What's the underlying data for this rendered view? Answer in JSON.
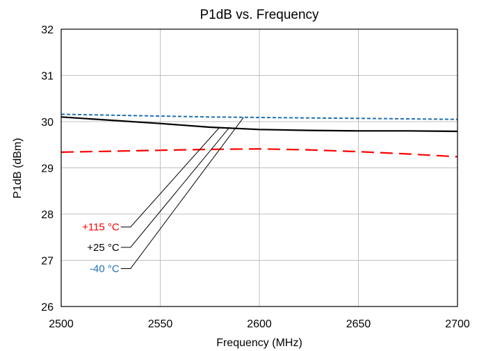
{
  "chart_data": {
    "type": "line",
    "title": "P1dB vs. Frequency",
    "xlabel": "Frequency (MHz)",
    "ylabel": "P1dB (dBm)",
    "xlim": [
      2500,
      2700
    ],
    "ylim": [
      26,
      32
    ],
    "xticks": [
      2500,
      2550,
      2600,
      2650,
      2700
    ],
    "yticks": [
      26,
      27,
      28,
      29,
      30,
      31,
      32
    ],
    "grid": true,
    "x": [
      2500,
      2525,
      2550,
      2575,
      2600,
      2625,
      2650,
      2675,
      2700
    ],
    "series": [
      {
        "name": "+115 °C",
        "color": "#ff0000",
        "dash": "long-dash",
        "values": [
          29.34,
          29.36,
          29.38,
          29.4,
          29.41,
          29.39,
          29.35,
          29.3,
          29.24
        ]
      },
      {
        "name": "+25 °C",
        "color": "#000000",
        "dash": "solid",
        "values": [
          30.1,
          30.03,
          29.96,
          29.88,
          29.83,
          29.81,
          29.8,
          29.8,
          29.79
        ]
      },
      {
        "name": "-40 °C",
        "color": "#1f6fb5",
        "dash": "short-dash",
        "values": [
          30.16,
          30.14,
          30.12,
          30.1,
          30.09,
          30.08,
          30.07,
          30.06,
          30.05
        ]
      }
    ],
    "annotations": [
      {
        "label": "+115 °C",
        "label_freq": 2535,
        "label_dbm": 27.72,
        "end_freq": 2580,
        "end_dbm": 29.88
      },
      {
        "label": "+25 °C",
        "label_freq": 2535,
        "label_dbm": 27.28,
        "end_freq": 2585,
        "end_dbm": 29.88
      },
      {
        "label": "-40 °C",
        "label_freq": 2535,
        "label_dbm": 26.82,
        "end_freq": 2592,
        "end_dbm": 30.09
      }
    ]
  }
}
